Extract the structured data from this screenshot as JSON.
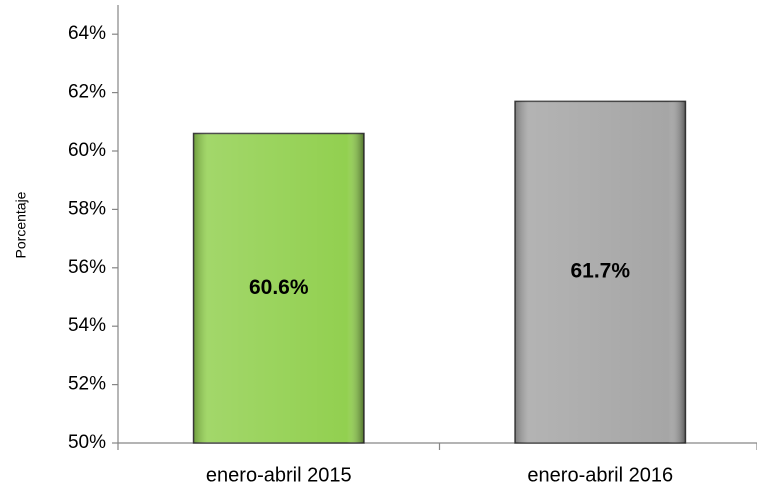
{
  "chart_data": {
    "type": "bar",
    "y_axis_label": "Porcentaje",
    "categories": [
      "enero-abril 2015",
      "enero-abril 2016"
    ],
    "values": [
      60.6,
      61.7
    ],
    "value_labels": [
      "60.6%",
      "61.7%"
    ],
    "colors": [
      "#92d050",
      "#a6a6a6"
    ],
    "ylim": [
      50,
      65
    ],
    "yticks": [
      {
        "value": 50,
        "label": "50%"
      },
      {
        "value": 52,
        "label": "52%"
      },
      {
        "value": 54,
        "label": "54%"
      },
      {
        "value": 56,
        "label": "56%"
      },
      {
        "value": 58,
        "label": "58%"
      },
      {
        "value": 60,
        "label": "60%"
      },
      {
        "value": 62,
        "label": "62%"
      },
      {
        "value": 64,
        "label": "64%"
      }
    ],
    "grid": false
  }
}
